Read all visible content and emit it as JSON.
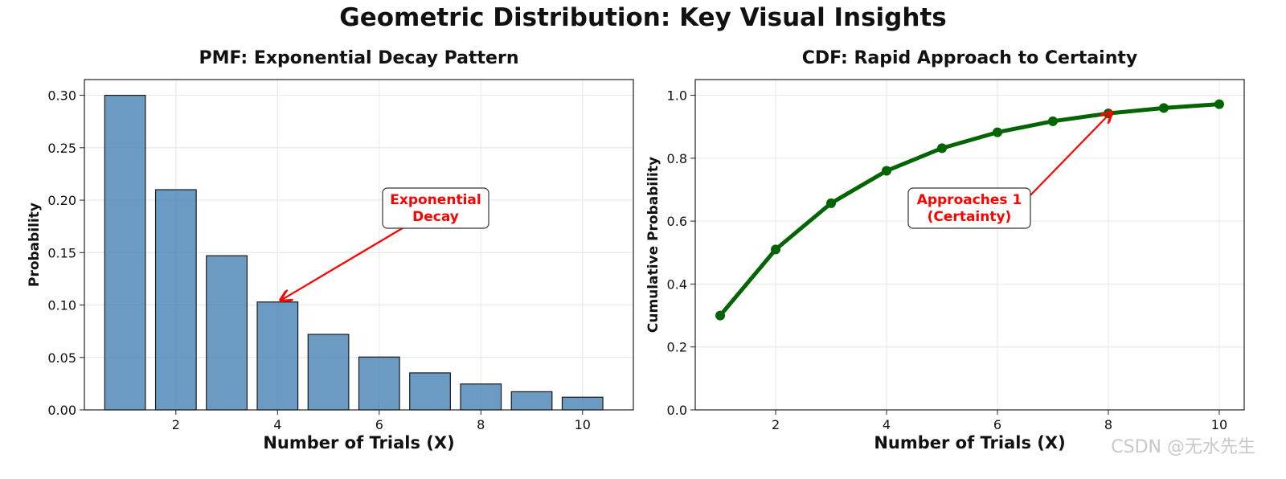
{
  "title": "Geometric Distribution: Key Visual Insights",
  "watermark": "CSDN @无水先生",
  "chart_data": [
    {
      "type": "bar",
      "title": "PMF: Exponential Decay Pattern",
      "xlabel": "Number of Trials (X)",
      "ylabel": "Probability",
      "x": [
        1,
        2,
        3,
        4,
        5,
        6,
        7,
        8,
        9,
        10
      ],
      "values": [
        0.3,
        0.21,
        0.147,
        0.1029,
        0.072,
        0.0504,
        0.0353,
        0.0247,
        0.0173,
        0.0121
      ],
      "xlim": [
        0.2,
        11.0
      ],
      "ylim": [
        0,
        0.315
      ],
      "xticks": [
        "2",
        "4",
        "6",
        "8",
        "10"
      ],
      "yticks": [
        "0.00",
        "0.05",
        "0.10",
        "0.15",
        "0.20",
        "0.25",
        "0.30"
      ],
      "grid": true,
      "bar_color": "#4682b4",
      "annotation": {
        "lines": [
          "Exponential",
          "Decay"
        ],
        "target_x": 4,
        "target_y": 0.1029,
        "color": "#ff0000"
      }
    },
    {
      "type": "line",
      "title": "CDF: Rapid Approach to Certainty",
      "xlabel": "Number of Trials (X)",
      "ylabel": "Cumulative Probability",
      "x": [
        1,
        2,
        3,
        4,
        5,
        6,
        7,
        8,
        9,
        10
      ],
      "values": [
        0.3,
        0.51,
        0.657,
        0.7599,
        0.8319,
        0.8824,
        0.9176,
        0.9424,
        0.9596,
        0.9718
      ],
      "xlim": [
        0.55,
        10.45
      ],
      "ylim": [
        0,
        1.05
      ],
      "xticks": [
        "2",
        "4",
        "6",
        "8",
        "10"
      ],
      "yticks": [
        "0.0",
        "0.2",
        "0.4",
        "0.6",
        "0.8",
        "1.0"
      ],
      "grid": true,
      "line_color": "#006400",
      "annotation": {
        "lines": [
          "Approaches 1",
          "(Certainty)"
        ],
        "target_x": 8,
        "target_y": 0.9424,
        "color": "#ff0000"
      }
    }
  ]
}
